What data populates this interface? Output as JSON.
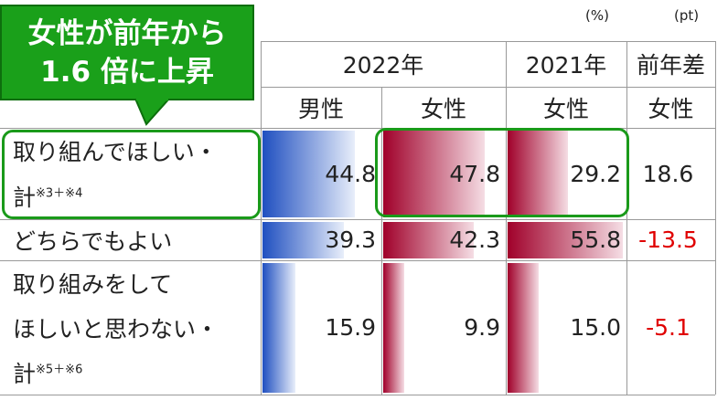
{
  "units": [
    "(%)",
    "(pt)"
  ],
  "callout": {
    "lines": [
      "女性が前年から",
      "1.6 倍に上昇"
    ]
  },
  "table": {
    "header": [
      "2022年",
      "2021年",
      "前年差"
    ],
    "subheader": [
      "男性",
      "女性",
      "女性",
      "女性"
    ],
    "rows": [
      {
        "label": [
          "取り組んでほしい・",
          "計"
        ],
        "note": "※3＋※4",
        "values": [
          44.8,
          47.8,
          29.2,
          18.6
        ]
      },
      {
        "label": [
          "どちらでもよい"
        ],
        "values": [
          39.3,
          42.3,
          55.8,
          -13.5
        ]
      },
      {
        "label": [
          "取り組みをして",
          "ほしいと思わない・",
          "計"
        ],
        "note": "※5＋※6",
        "values": [
          15.9,
          9.9,
          15,
          -5.1
        ],
        "value_labels": [
          "15.9",
          "9.9",
          "15.0",
          "-5.1"
        ]
      }
    ]
  }
}
